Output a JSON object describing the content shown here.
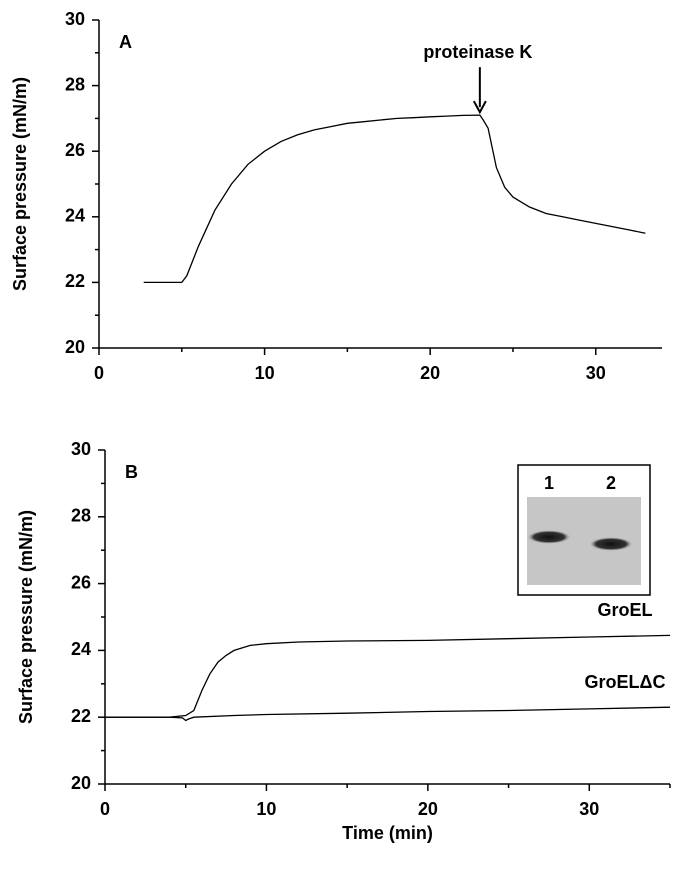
{
  "chart_data": [
    {
      "type": "line",
      "label": "A",
      "ylabel": "Surface pressure (mN/m)",
      "color": "#000000",
      "annotation": "proteinase K",
      "x": [
        2.7,
        4,
        5,
        5.3,
        6,
        7,
        8,
        9,
        10,
        11,
        12,
        13,
        14,
        15,
        16,
        17,
        18,
        19,
        20,
        21,
        22,
        23,
        23.2,
        23.5,
        24,
        24.5,
        25,
        26,
        27,
        28,
        29,
        30,
        31,
        32,
        33
      ],
      "values": [
        22,
        22,
        22,
        22.2,
        23.1,
        24.2,
        25.0,
        25.6,
        26.0,
        26.3,
        26.5,
        26.65,
        26.75,
        26.85,
        26.9,
        26.95,
        27.0,
        27.02,
        27.05,
        27.07,
        27.09,
        27.1,
        26.95,
        26.7,
        25.5,
        24.9,
        24.6,
        24.3,
        24.1,
        24.0,
        23.9,
        23.8,
        23.7,
        23.6,
        23.5
      ],
      "xlim": [
        0,
        34
      ],
      "ylim": [
        20,
        30
      ],
      "xticks": [
        0,
        10,
        20,
        30
      ],
      "yticks": [
        20,
        22,
        24,
        26,
        28,
        30
      ],
      "xminorticks": [
        5,
        15,
        25
      ],
      "yminorticks": [
        21,
        23,
        25,
        27,
        29
      ]
    },
    {
      "type": "line",
      "label": "B",
      "ylabel": "Surface pressure (mN/m)",
      "xlabel": "Time (min)",
      "inset": {
        "lanes": [
          "1",
          "2"
        ]
      },
      "series": [
        {
          "name": "GroEL",
          "color": "#000000",
          "x": [
            0,
            2,
            4,
            5,
            5.5,
            6,
            6.5,
            7,
            7.5,
            8,
            9,
            10,
            12,
            15,
            20,
            25,
            30,
            35
          ],
          "values": [
            22,
            22,
            22,
            22.05,
            22.2,
            22.8,
            23.3,
            23.65,
            23.85,
            24.0,
            24.15,
            24.2,
            24.25,
            24.28,
            24.3,
            24.35,
            24.4,
            24.45
          ]
        },
        {
          "name": "GroELΔC",
          "color": "#000000",
          "x": [
            0,
            2,
            4,
            4.8,
            5,
            5.2,
            5.5,
            8,
            10,
            15,
            20,
            25,
            30,
            35
          ],
          "values": [
            22,
            22,
            22,
            21.98,
            21.9,
            21.95,
            22.0,
            22.05,
            22.08,
            22.12,
            22.17,
            22.2,
            22.25,
            22.3
          ]
        }
      ],
      "xlim": [
        0,
        35
      ],
      "ylim": [
        20,
        30
      ],
      "xticks": [
        0,
        10,
        20,
        30
      ],
      "yticks": [
        20,
        22,
        24,
        26,
        28,
        30
      ],
      "xminorticks": [
        5,
        15,
        25,
        35
      ],
      "yminorticks": [
        21,
        23,
        25,
        27,
        29
      ]
    }
  ]
}
